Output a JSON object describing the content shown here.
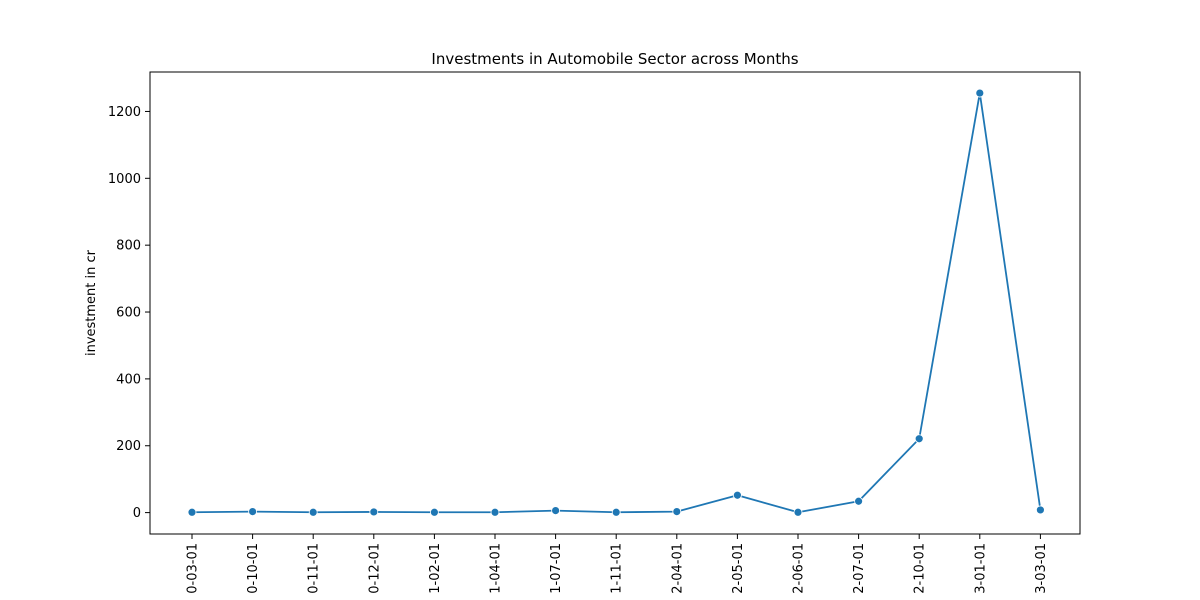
{
  "chart_data": {
    "type": "line",
    "title": "Investments in Automobile Sector across Months",
    "xlabel": "",
    "ylabel": "investment in cr",
    "categories": [
      "0-03-01",
      "0-10-01",
      "0-11-01",
      "0-12-01",
      "1-02-01",
      "1-04-01",
      "1-07-01",
      "1-11-01",
      "2-04-01",
      "2-05-01",
      "2-06-01",
      "2-07-01",
      "2-10-01",
      "3-01-01",
      "3-03-01"
    ],
    "series": [
      {
        "name": "",
        "values": [
          1,
          3,
          1,
          2,
          1,
          1,
          6,
          1,
          3,
          52,
          1,
          34,
          221,
          1255,
          8
        ],
        "color": "#1f77b4"
      }
    ],
    "yticks": [
      0,
      200,
      400,
      600,
      800,
      1000,
      1200
    ],
    "ylim": [
      -64,
      1318
    ],
    "grid": false,
    "legend": "none"
  }
}
